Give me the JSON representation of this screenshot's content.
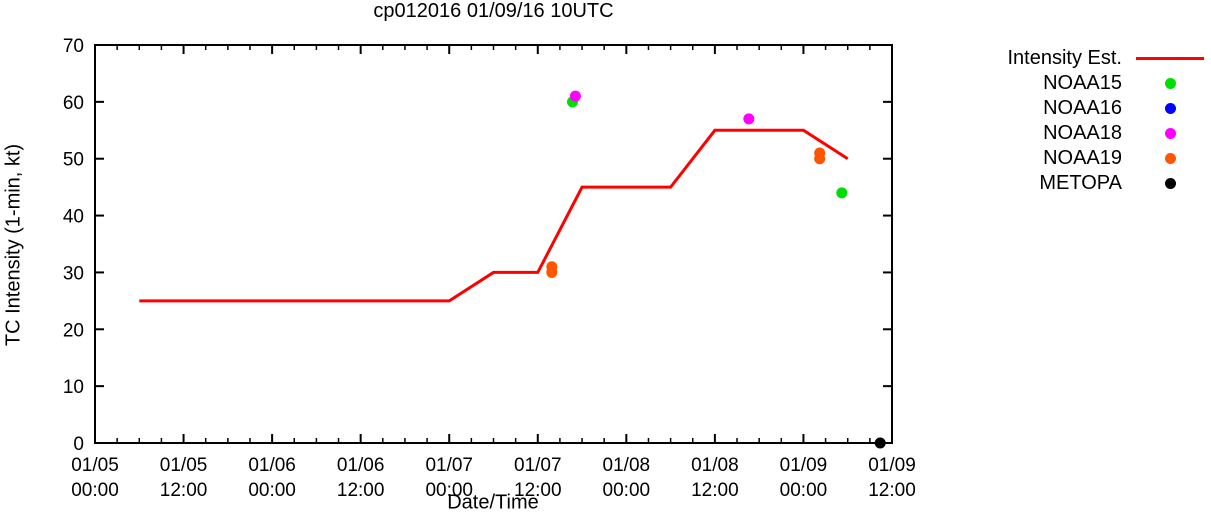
{
  "chart_data": {
    "type": "line",
    "title": "cp012016 01/09/16 10UTC",
    "xlabel": "Date/Time",
    "ylabel": "TC Intensity (1-min, kt)",
    "ylim": [
      0,
      70
    ],
    "yticks": [
      0,
      10,
      20,
      30,
      40,
      50,
      60,
      70
    ],
    "x_hours_range": [
      0,
      108
    ],
    "xtick_major_hours": 12,
    "xtick_minor_hours": 3,
    "grid": false,
    "legend_position": "outside-right-top",
    "xticks": [
      {
        "hour": 0,
        "date": "01/05",
        "time": "00:00"
      },
      {
        "hour": 12,
        "date": "01/05",
        "time": "12:00"
      },
      {
        "hour": 24,
        "date": "01/06",
        "time": "00:00"
      },
      {
        "hour": 36,
        "date": "01/06",
        "time": "12:00"
      },
      {
        "hour": 48,
        "date": "01/07",
        "time": "00:00"
      },
      {
        "hour": 60,
        "date": "01/07",
        "time": "12:00"
      },
      {
        "hour": 72,
        "date": "01/08",
        "time": "00:00"
      },
      {
        "hour": 84,
        "date": "01/08",
        "time": "12:00"
      },
      {
        "hour": 96,
        "date": "01/09",
        "time": "00:00"
      },
      {
        "hour": 108,
        "date": "01/09",
        "time": "12:00"
      }
    ],
    "series": [
      {
        "name": "Intensity Est.",
        "kind": "line",
        "color": "#ff0000",
        "points": [
          [
            6,
            25
          ],
          [
            48,
            25
          ],
          [
            54,
            30
          ],
          [
            60,
            30
          ],
          [
            66,
            45
          ],
          [
            78,
            45
          ],
          [
            84,
            55
          ],
          [
            96,
            55
          ],
          [
            102,
            50
          ]
        ]
      },
      {
        "name": "NOAA15",
        "kind": "scatter",
        "color": "#00dd00",
        "points": [
          [
            64.7,
            60
          ],
          [
            101.2,
            44
          ]
        ]
      },
      {
        "name": "NOAA16",
        "kind": "scatter",
        "color": "#0000ff",
        "points": []
      },
      {
        "name": "NOAA18",
        "kind": "scatter",
        "color": "#ff00ff",
        "points": [
          [
            65.1,
            61
          ],
          [
            88.6,
            57
          ]
        ]
      },
      {
        "name": "NOAA19",
        "kind": "scatter",
        "color": "#ff5500",
        "points": [
          [
            61.9,
            31
          ],
          [
            61.9,
            30
          ],
          [
            98.2,
            51
          ],
          [
            98.2,
            50
          ]
        ]
      },
      {
        "name": "METOPA",
        "kind": "scatter",
        "color": "#000000",
        "points": [
          [
            106.4,
            0
          ]
        ]
      }
    ]
  }
}
